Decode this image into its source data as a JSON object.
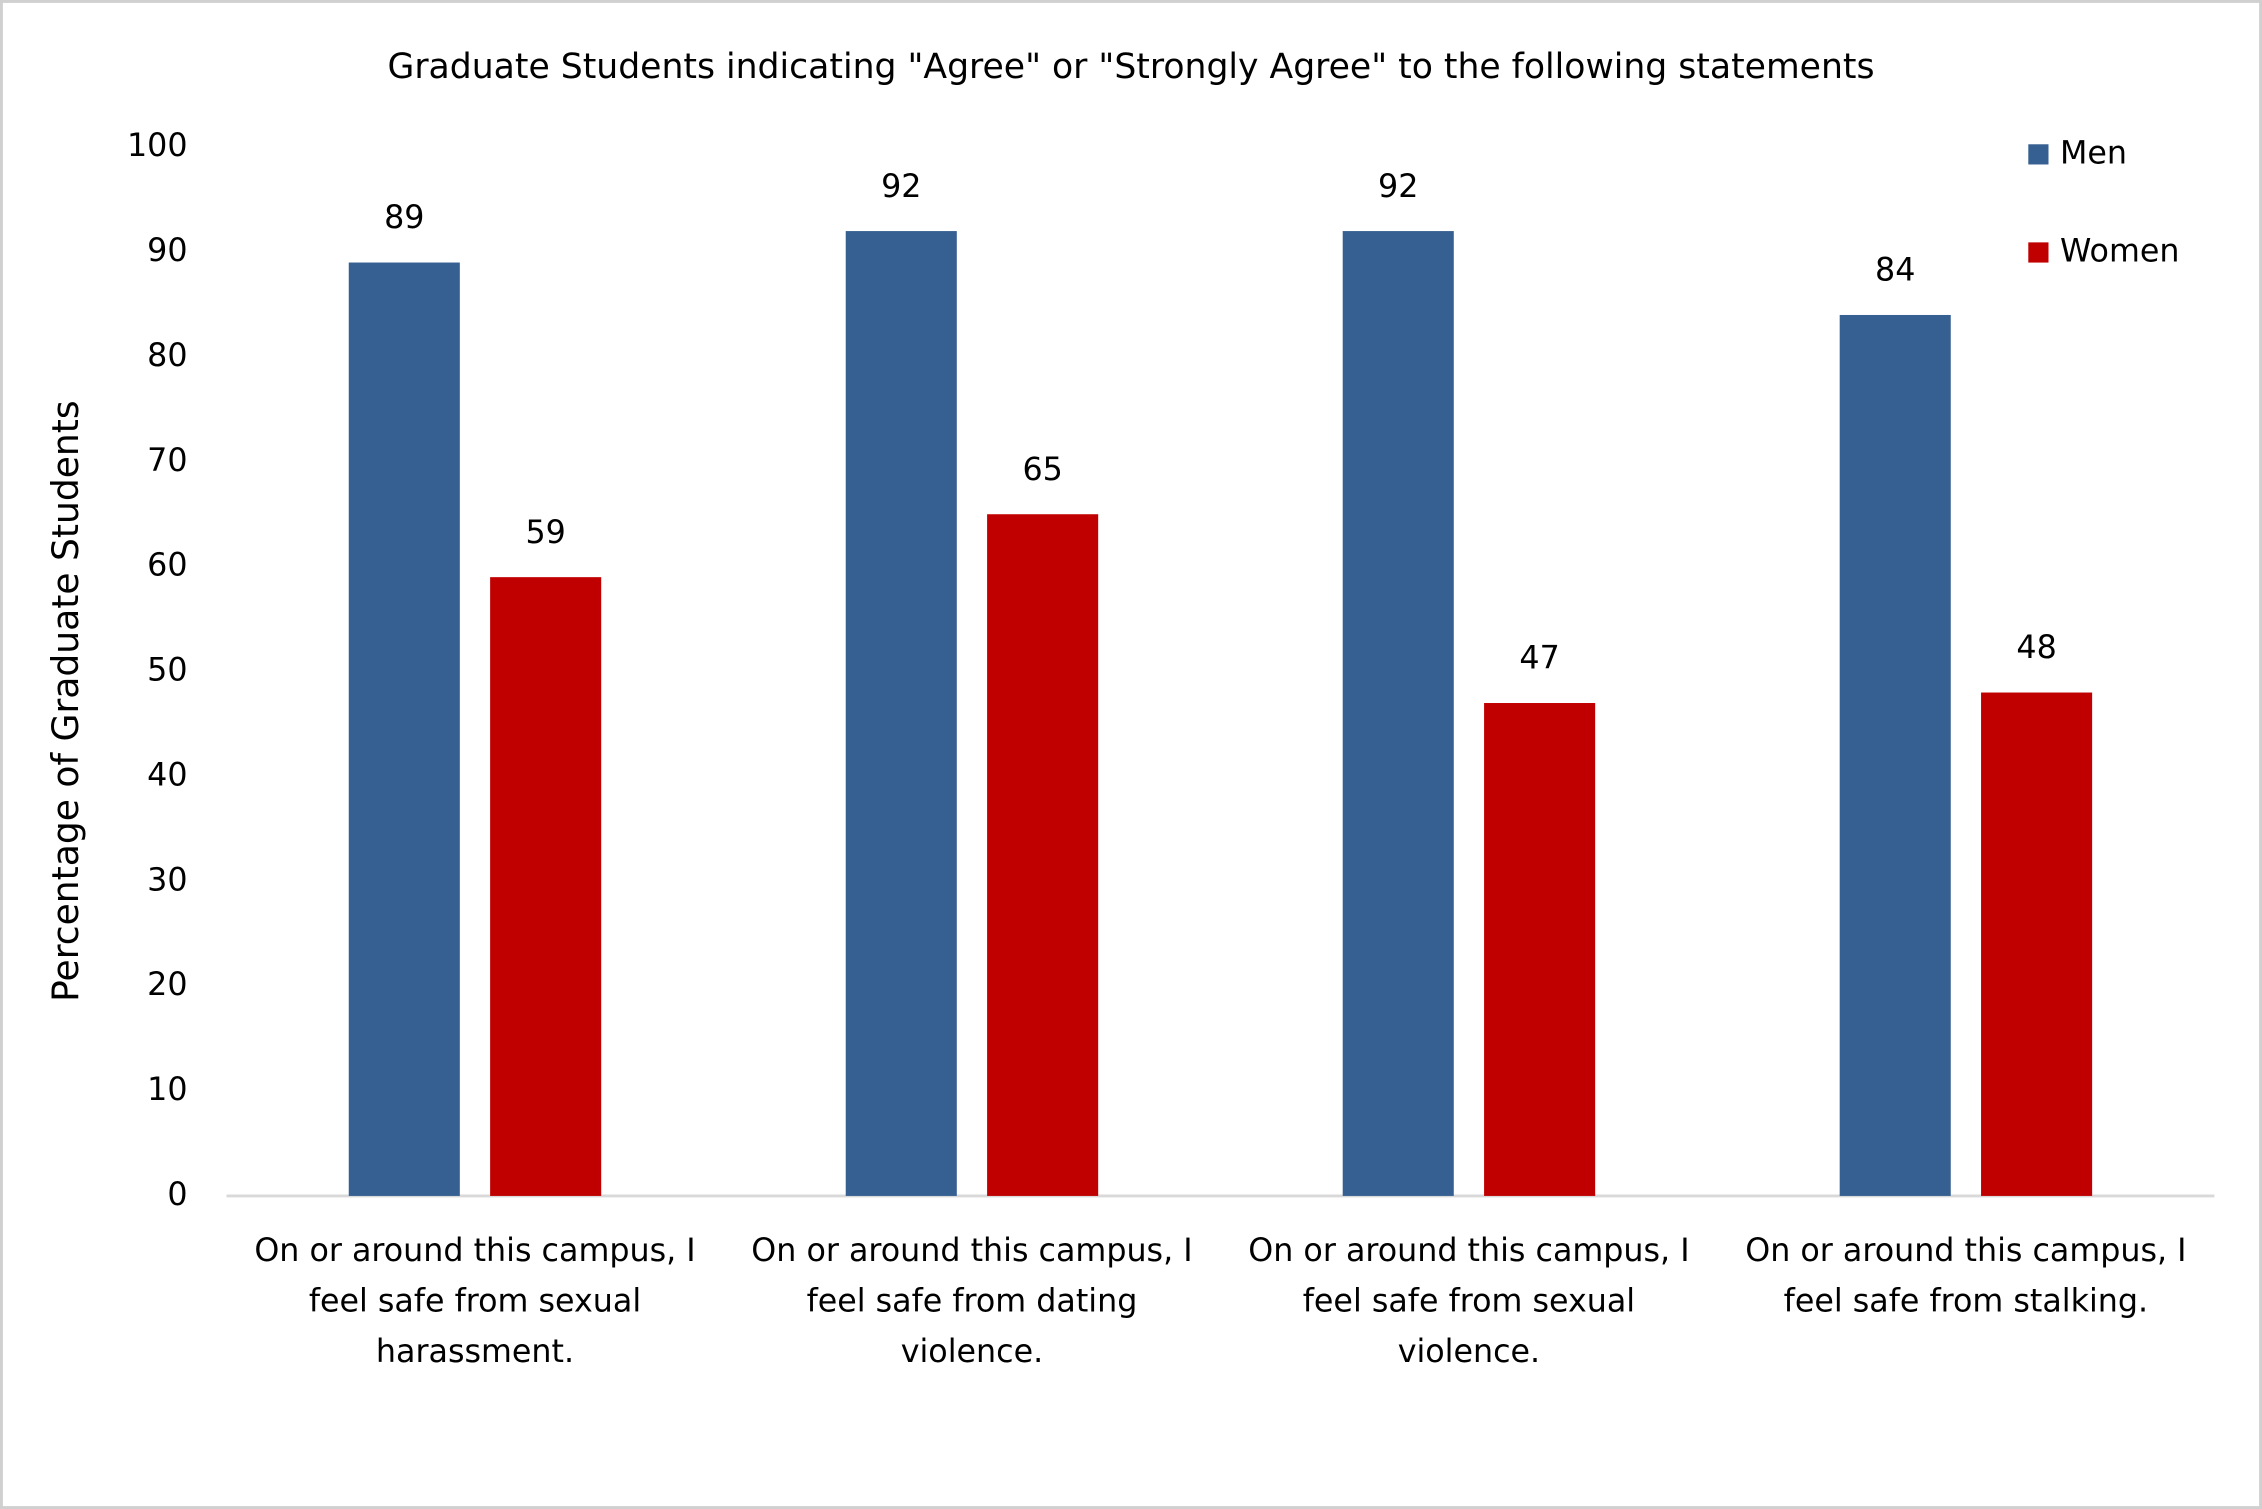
{
  "chart_data": {
    "type": "bar",
    "title": "Graduate Students indicating \"Agree\" or \"Strongly Agree\" to the following statements",
    "y_label": "Percentage of Graduate Students",
    "categories": [
      "On or around this campus, I feel safe from sexual harassment.",
      "On or around this campus, I feel safe from dating violence.",
      "On or around this campus, I feel safe from sexual violence.",
      "On or around this campus, I feel safe from stalking."
    ],
    "series": [
      {
        "name": "Men",
        "color": "#366092",
        "values": [
          89,
          92,
          92,
          84
        ]
      },
      {
        "name": "Women",
        "color": "#c00000",
        "values": [
          59,
          65,
          47,
          48
        ]
      }
    ],
    "ylim": [
      0,
      100
    ],
    "yticks": [
      0,
      10,
      20,
      30,
      40,
      50,
      60,
      70,
      80,
      90,
      100
    ],
    "grid": false,
    "legend": "top-right"
  }
}
